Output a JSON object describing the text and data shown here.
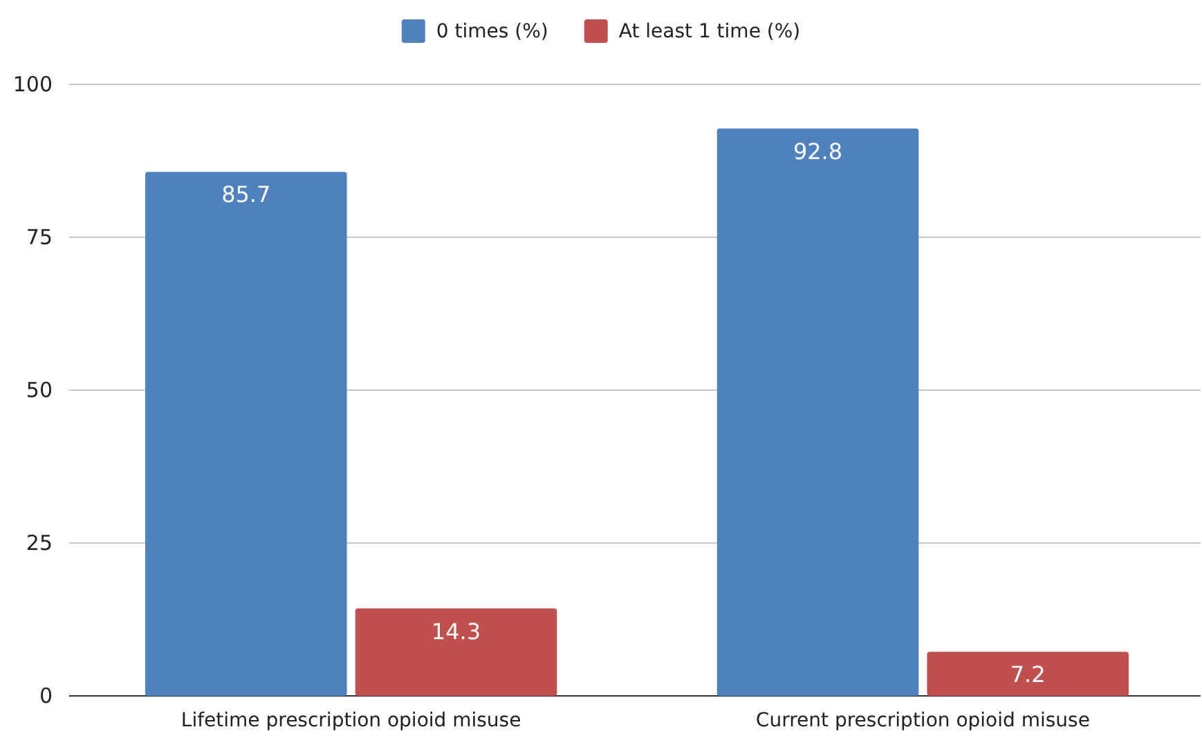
{
  "chart_data": {
    "type": "bar",
    "categories": [
      "Lifetime prescription opioid misuse",
      "Current prescription opioid misuse"
    ],
    "series": [
      {
        "name": "0 times (%)",
        "color": "#4e81bd",
        "values": [
          85.7,
          92.8
        ]
      },
      {
        "name": "At least 1 time (%)",
        "color": "#c0504d",
        "values": [
          14.3,
          7.2
        ]
      }
    ],
    "ylim": [
      0,
      100
    ],
    "yticks": [
      0,
      25,
      50,
      75,
      100
    ],
    "grid": "y",
    "legend": "top",
    "data_labels": true
  }
}
